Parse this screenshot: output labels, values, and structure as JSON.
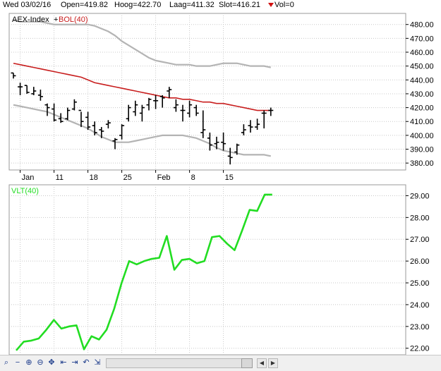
{
  "header": {
    "date": "Wed 03/02/16",
    "open": "Open=419.82",
    "high": "Hoog=422.70",
    "low": "Laag=411.32",
    "close": "Slot=416.21",
    "vol": "Vol=0"
  },
  "colors": {
    "price": "#000000",
    "bollinger_mid": "#c81e1e",
    "bollinger_band": "#b4b4b4",
    "volatility": "#22dd22",
    "grid": "#c8c8c8",
    "vol_arrow": "#d01010"
  },
  "icons": [
    "zoom-out-icon",
    "zoom-in-icon",
    "zoom-fit-icon",
    "first-icon",
    "last-icon",
    "undo-icon",
    "pan-icon",
    "end-icon",
    "scroll-left-icon",
    "scroll-right-icon"
  ],
  "chart_data": [
    {
      "type": "candlestick",
      "title_parts": [
        "AEX-Index",
        "BOL(40)"
      ],
      "legend_position": "top-left",
      "grid": true,
      "ylim": [
        375,
        488
      ],
      "y_ticks": [
        380,
        390,
        400,
        410,
        420,
        430,
        440,
        450,
        460,
        470,
        480
      ],
      "y_tick_labels": [
        "380.00",
        "390.00",
        "400.00",
        "410.00",
        "420.00",
        "430.00",
        "440.00",
        "450.00",
        "460.00",
        "470.00",
        "480.00"
      ],
      "x_tick_labels": [
        "Jan",
        "11",
        "18",
        "25",
        "Feb",
        "8",
        "15"
      ],
      "x_tick_index": [
        1,
        6,
        11,
        16,
        21,
        26,
        31
      ],
      "ohlc": [
        [
          445,
          445,
          441,
          443
        ],
        [
          435,
          438,
          429,
          435
        ],
        [
          436,
          436,
          430,
          431
        ],
        [
          430,
          435,
          429,
          432
        ],
        [
          429,
          433,
          425,
          428
        ],
        [
          422,
          423,
          414,
          420
        ],
        [
          419,
          423,
          410,
          411
        ],
        [
          412,
          416,
          409,
          410
        ],
        [
          412,
          420,
          411,
          418
        ],
        [
          419,
          426,
          418,
          424
        ],
        [
          418,
          417,
          406,
          410
        ],
        [
          413,
          417,
          404,
          406
        ],
        [
          407,
          410,
          400,
          402
        ],
        [
          404,
          406,
          398,
          403
        ],
        [
          408,
          411,
          405,
          409
        ],
        [
          396,
          398,
          390,
          397
        ],
        [
          400,
          408,
          397,
          407
        ],
        [
          412,
          422,
          410,
          420
        ],
        [
          417,
          425,
          414,
          422
        ],
        [
          416,
          422,
          410,
          420
        ],
        [
          422,
          427,
          418,
          426
        ],
        [
          425,
          429,
          419,
          425
        ],
        [
          428,
          429,
          420,
          427
        ],
        [
          432,
          435,
          427,
          433
        ],
        [
          420,
          426,
          417,
          422
        ],
        [
          418,
          422,
          410,
          418
        ],
        [
          416,
          425,
          413,
          422
        ],
        [
          420,
          422,
          414,
          416
        ],
        [
          402,
          418,
          398,
          404
        ],
        [
          398,
          402,
          389,
          393
        ],
        [
          394,
          399,
          390,
          395
        ],
        [
          395,
          402,
          389,
          394
        ],
        [
          385,
          391,
          379,
          384
        ],
        [
          388,
          394,
          386,
          393
        ],
        [
          402,
          408,
          400,
          404
        ],
        [
          407,
          411,
          402,
          406
        ],
        [
          406,
          412,
          404,
          408
        ],
        [
          416,
          418,
          405,
          416
        ],
        [
          418,
          420,
          414,
          418
        ]
      ],
      "series": [
        {
          "name": "BOL(40)",
          "role": "middle",
          "values": [
            452,
            451,
            450,
            449,
            448,
            447,
            446,
            445,
            444,
            443,
            442,
            440,
            438,
            437,
            436,
            435,
            434,
            433,
            432,
            431,
            430,
            429,
            428,
            427,
            427,
            426,
            426,
            425,
            424,
            424,
            423,
            423,
            422,
            421,
            420,
            419,
            418,
            418,
            418
          ]
        },
        {
          "role": "upper",
          "values": [
            483,
            482,
            482,
            482,
            482,
            481,
            480,
            480,
            480,
            480,
            480,
            480,
            479,
            477,
            475,
            472,
            468,
            465,
            462,
            459,
            456,
            454,
            453,
            452,
            451,
            451,
            451,
            450,
            450,
            450,
            451,
            452,
            452,
            452,
            451,
            450,
            450,
            450,
            449
          ]
        },
        {
          "role": "lower",
          "values": [
            422,
            421,
            420,
            419,
            418,
            417,
            415,
            413,
            411,
            409,
            407,
            405,
            402,
            399,
            397,
            395,
            395,
            395,
            396,
            397,
            398,
            399,
            400,
            400,
            400,
            400,
            399,
            398,
            396,
            394,
            391,
            389,
            388,
            387,
            386,
            386,
            386,
            386,
            385
          ]
        }
      ]
    },
    {
      "type": "line",
      "title": "VLT(40)",
      "legend_position": "top-left",
      "grid": true,
      "ylim": [
        21.7,
        29.5
      ],
      "y_ticks": [
        22,
        23,
        24,
        25,
        26,
        27,
        28,
        29
      ],
      "y_tick_labels": [
        "22.00",
        "23.00",
        "24.00",
        "25.00",
        "26.00",
        "27.00",
        "28.00",
        "29.00"
      ],
      "series": [
        {
          "name": "VLT(40)",
          "values": [
            21.9,
            22.3,
            22.35,
            22.45,
            22.85,
            23.3,
            22.9,
            23.0,
            23.05,
            21.95,
            22.55,
            22.4,
            22.85,
            23.8,
            25.0,
            26.0,
            25.85,
            26.0,
            26.1,
            26.15,
            27.15,
            25.6,
            26.05,
            26.1,
            25.9,
            26.0,
            27.1,
            27.15,
            26.8,
            26.5,
            27.4,
            28.35,
            28.3,
            29.05,
            29.05
          ]
        }
      ]
    }
  ]
}
